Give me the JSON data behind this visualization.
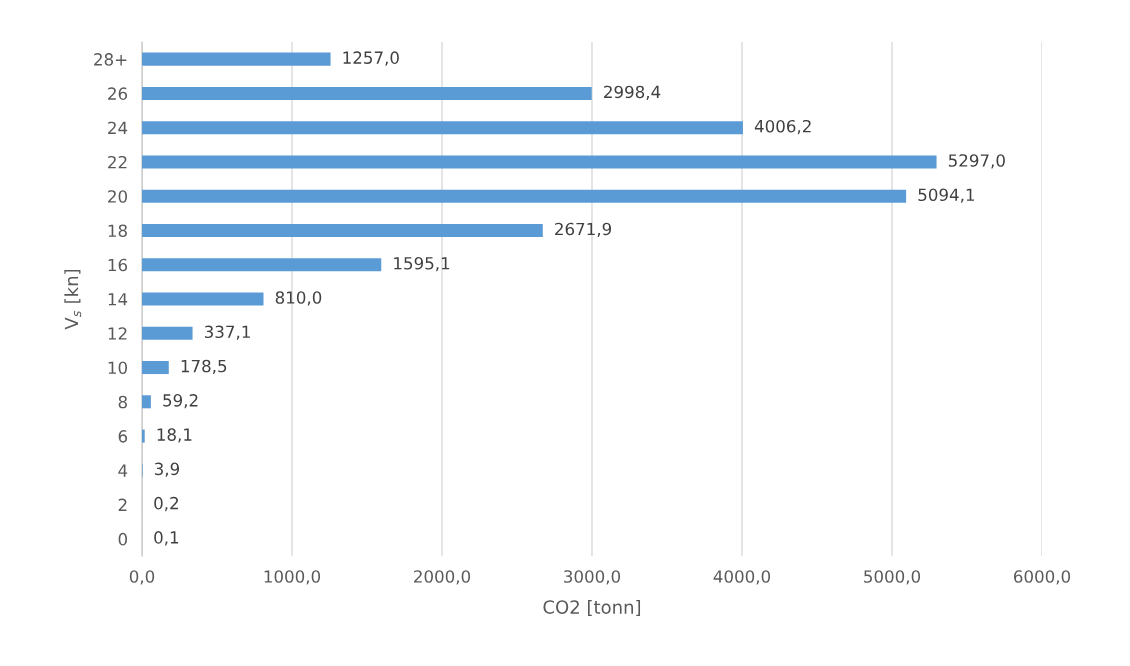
{
  "chart_data": {
    "type": "bar",
    "orientation": "horizontal",
    "xlabel": "CO2 [tonn]",
    "ylabel": "V$_{s}$ [kn]",
    "categories": [
      "28+",
      "26",
      "24",
      "22",
      "20",
      "18",
      "16",
      "14",
      "12",
      "10",
      "8",
      "6",
      "4",
      "2",
      "0"
    ],
    "values": [
      1257.0,
      2998.4,
      4006.2,
      5297.0,
      5094.1,
      2671.9,
      1595.1,
      810.0,
      337.1,
      178.5,
      59.2,
      18.1,
      3.9,
      0.2,
      0.1
    ],
    "value_labels": [
      "1257,0",
      "2998,4",
      "4006,2",
      "5297,0",
      "5094,1",
      "2671,9",
      "1595,1",
      "810,0",
      "337,1",
      "178,5",
      "59,2",
      "18,1",
      "3,9",
      "0,2",
      "0,1"
    ],
    "color": "#5b9bd5",
    "xlim": [
      0,
      6000
    ],
    "xticks": [
      {
        "value": 0,
        "label": "0,0"
      },
      {
        "value": 1000,
        "label": "1000,0"
      },
      {
        "value": 2000,
        "label": "2000,0"
      },
      {
        "value": 3000,
        "label": "3000,0"
      },
      {
        "value": 4000,
        "label": "4000,0"
      },
      {
        "value": 5000,
        "label": "5000,0"
      },
      {
        "value": 6000,
        "label": "6000,0"
      }
    ],
    "grid": "x",
    "legend": false
  }
}
